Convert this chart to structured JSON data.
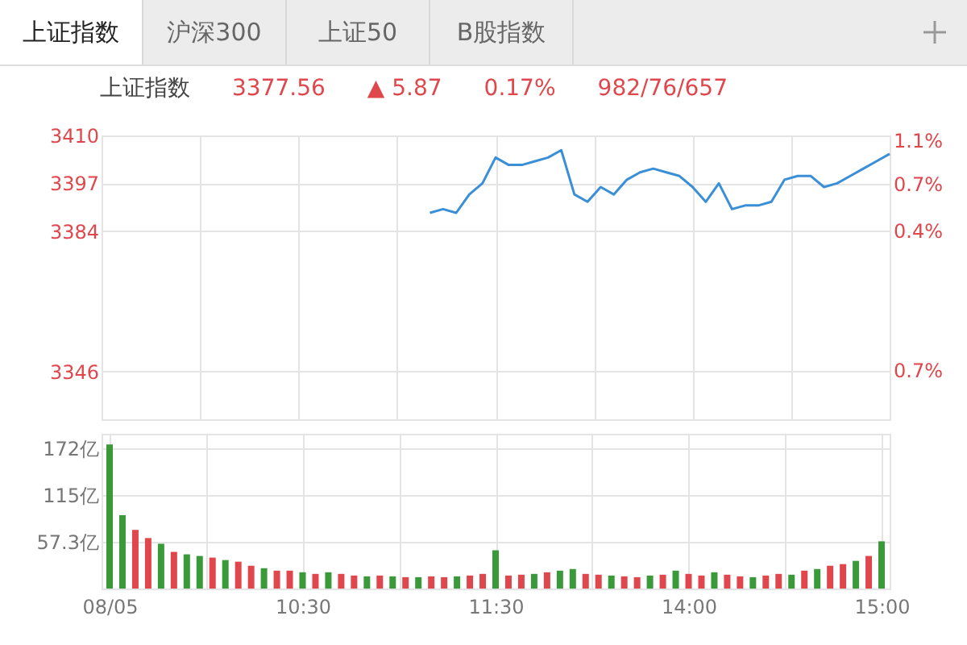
{
  "chart_data": [
    {
      "type": "line",
      "title": "上证指数",
      "annotations": [
        "上证指数",
        "沪深300",
        "上证50",
        "B股指数",
        "3377.56",
        "▲ 5.87",
        "0.17%",
        "982/76/657"
      ],
      "series": [
        {
          "color": "#3a8fd6",
          "values": [
            null,
            null,
            null,
            null,
            null,
            null,
            null,
            null,
            null,
            null,
            null,
            null,
            null,
            null,
            null,
            null,
            null,
            null,
            null,
            null,
            null,
            null,
            null,
            null,
            null,
            3389,
            3390,
            3389,
            3394,
            3397,
            3404,
            3402,
            3402,
            3403,
            3404,
            3406,
            3394,
            3392,
            3396,
            3394,
            3398,
            3400,
            3401,
            3400,
            3399,
            3396,
            3392,
            3397,
            3390,
            3391,
            3391,
            3392,
            3398,
            3399,
            3399,
            3396,
            3397,
            3399,
            3401,
            3403,
            3405
          ]
        }
      ],
      "ylim": [
        3333,
        3410
      ],
      "yticks": [
        3410,
        3397,
        3384,
        3346
      ],
      "y2lim": [
        -1.15,
        1.14
      ],
      "y2ticks": [
        {
          "value": 1.1,
          "label": "1.1%"
        },
        {
          "value": 0.75,
          "label": "0.7%"
        },
        {
          "value": 0.37,
          "label": "0.4%"
        },
        {
          "value": -0.75,
          "label": "0.7%"
        }
      ],
      "grid": true,
      "tick_labels": "y"
    },
    {
      "type": "bar",
      "categories": [
        "08/05",
        null,
        null,
        null,
        null,
        null,
        null,
        null,
        null,
        null,
        null,
        null,
        null,
        null,
        null,
        "10:30",
        null,
        null,
        null,
        null,
        null,
        null,
        null,
        null,
        null,
        null,
        null,
        null,
        null,
        null,
        "11:30",
        null,
        null,
        null,
        null,
        null,
        null,
        null,
        null,
        null,
        null,
        null,
        null,
        null,
        null,
        "14:00",
        null,
        null,
        null,
        null,
        null,
        null,
        null,
        null,
        null,
        null,
        null,
        null,
        null,
        null,
        "15:00"
      ],
      "values": [
        177,
        90,
        72,
        62,
        55,
        45,
        42,
        40,
        38,
        35,
        33,
        28,
        25,
        22,
        22,
        20,
        18,
        20,
        18,
        16,
        15,
        16,
        15,
        14,
        14,
        15,
        14,
        15,
        16,
        18,
        47,
        16,
        17,
        18,
        20,
        22,
        24,
        18,
        17,
        16,
        15,
        14,
        16,
        17,
        22,
        18,
        16,
        20,
        17,
        15,
        14,
        16,
        18,
        17,
        22,
        24,
        28,
        30,
        34,
        40,
        58
      ],
      "colors": [
        "#3a9a3a",
        "#3a9a3a",
        "#e0474c",
        "#e0474c",
        "#3a9a3a",
        "#e0474c",
        "#3a9a3a",
        "#3a9a3a",
        "#e0474c",
        "#3a9a3a",
        "#e0474c",
        "#e0474c",
        "#3a9a3a",
        "#e0474c",
        "#e0474c",
        "#3a9a3a",
        "#e0474c",
        "#3a9a3a",
        "#e0474c",
        "#e0474c",
        "#3a9a3a",
        "#e0474c",
        "#3a9a3a",
        "#e0474c",
        "#3a9a3a",
        "#e0474c",
        "#e0474c",
        "#3a9a3a",
        "#e0474c",
        "#e0474c",
        "#3a9a3a",
        "#e0474c",
        "#e0474c",
        "#3a9a3a",
        "#e0474c",
        "#3a9a3a",
        "#3a9a3a",
        "#e0474c",
        "#e0474c",
        "#3a9a3a",
        "#e0474c",
        "#e0474c",
        "#3a9a3a",
        "#e0474c",
        "#3a9a3a",
        "#e0474c",
        "#e0474c",
        "#3a9a3a",
        "#e0474c",
        "#e0474c",
        "#3a9a3a",
        "#e0474c",
        "#e0474c",
        "#3a9a3a",
        "#e0474c",
        "#3a9a3a",
        "#e0474c",
        "#e0474c",
        "#3a9a3a",
        "#e0474c",
        "#3a9a3a"
      ],
      "ylim": [
        0,
        190
      ],
      "yticks": [
        {
          "value": 57.3,
          "label": "57.3亿"
        },
        {
          "value": 115,
          "label": "115亿"
        },
        {
          "value": 172,
          "label": "172亿"
        }
      ],
      "grid": true
    }
  ]
}
